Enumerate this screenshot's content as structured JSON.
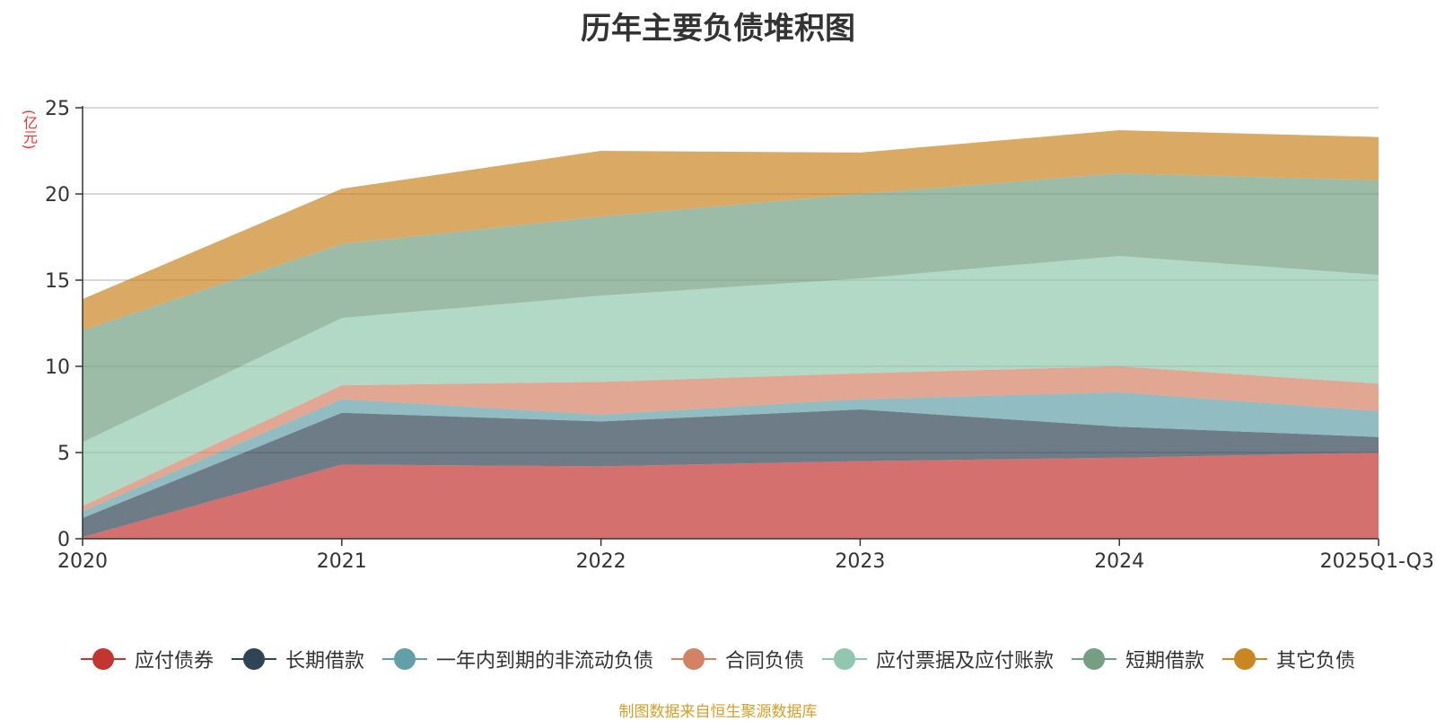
{
  "chart_data": {
    "type": "area",
    "stacked": true,
    "title": "历年主要负债堆积图",
    "ylabel": "(亿元)",
    "xlabel": "",
    "ylim": [
      0,
      25
    ],
    "yticks": [
      0,
      5,
      10,
      15,
      20,
      25
    ],
    "categories": [
      "2020",
      "2021",
      "2022",
      "2023",
      "2024",
      "2025Q1-Q3"
    ],
    "grid": true,
    "legend_position": "bottom",
    "series": [
      {
        "name": "应付债券",
        "color": "#c23531",
        "values": [
          0.1,
          4.3,
          4.2,
          4.5,
          4.7,
          5.0
        ]
      },
      {
        "name": "长期借款",
        "color": "#2f4554",
        "values": [
          1.1,
          3.0,
          2.6,
          3.0,
          1.8,
          0.9
        ]
      },
      {
        "name": "一年内到期的非流动负债",
        "color": "#61a0a8",
        "values": [
          0.4,
          0.8,
          0.4,
          0.6,
          2.0,
          1.5
        ]
      },
      {
        "name": "合同负债",
        "color": "#d48265",
        "values": [
          0.3,
          0.8,
          1.9,
          1.5,
          1.5,
          1.6
        ]
      },
      {
        "name": "应付票据及应付账款",
        "color": "#91c7ae",
        "values": [
          3.7,
          3.9,
          5.0,
          5.5,
          6.4,
          6.3
        ]
      },
      {
        "name": "短期借款",
        "color": "#749f83",
        "values": [
          6.5,
          4.3,
          4.6,
          4.9,
          4.8,
          5.5
        ]
      },
      {
        "name": "其它负债",
        "color": "#ca8622",
        "values": [
          1.8,
          3.2,
          3.8,
          2.4,
          2.5,
          2.5
        ]
      }
    ]
  },
  "source_note": "制图数据来自恒生聚源数据库"
}
